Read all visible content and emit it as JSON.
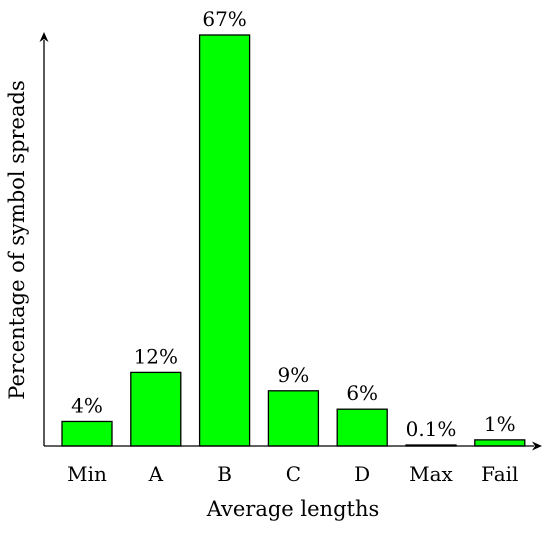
{
  "chart_data": {
    "type": "bar",
    "categories": [
      "Min",
      "A",
      "B",
      "C",
      "D",
      "Max",
      "Fail"
    ],
    "values": [
      4,
      12,
      67,
      9,
      6,
      0.1,
      1
    ],
    "data_labels": [
      "4%",
      "12%",
      "67%",
      "9%",
      "6%",
      "0.1%",
      "1%"
    ],
    "xlabel": "Average lengths",
    "ylabel": "Percentage of symbol spreads",
    "ylim": [
      0,
      67
    ],
    "grid": false,
    "bar_color": "#00ff00"
  }
}
